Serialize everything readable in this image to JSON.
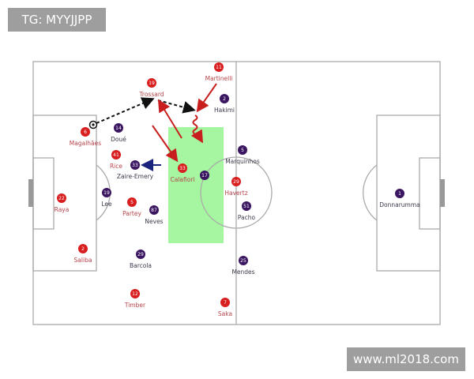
{
  "watermarks": {
    "top_left": "TG: MYYJJPP",
    "bottom_right": "www.ml2018.com"
  },
  "colors": {
    "team_red": "#d81e1e",
    "team_blue": "#3a1560",
    "red_label": "#b5434a",
    "blue_label": "#3a3a4a",
    "highlight_zone": "#a6f5a0",
    "pass_arrow": "#111111",
    "run_arrow": "#b81e1e",
    "blue_arrow": "#1a237e"
  },
  "players": [
    {
      "team": "red",
      "number": "11",
      "name": "Martinelli"
    },
    {
      "team": "red",
      "number": "19",
      "name": "Trossard"
    },
    {
      "team": "red",
      "number": "6",
      "name": "Magalhães"
    },
    {
      "team": "red",
      "number": "41",
      "name": "Rice"
    },
    {
      "team": "red",
      "number": "33",
      "name": "Calafiori"
    },
    {
      "team": "red",
      "number": "22",
      "name": "Raya"
    },
    {
      "team": "red",
      "number": "5",
      "name": "Partey"
    },
    {
      "team": "red",
      "number": "29",
      "name": "Havertz"
    },
    {
      "team": "red",
      "number": "2",
      "name": "Saliba"
    },
    {
      "team": "red",
      "number": "12",
      "name": "Timber"
    },
    {
      "team": "red",
      "number": "7",
      "name": "Saka"
    },
    {
      "team": "blue",
      "number": "2",
      "name": "Hakimi"
    },
    {
      "team": "blue",
      "number": "14",
      "name": "Doué"
    },
    {
      "team": "blue",
      "number": "33",
      "name": "Zaire-Emery"
    },
    {
      "team": "blue",
      "number": "19",
      "name": "Lee"
    },
    {
      "team": "blue",
      "number": "17",
      "name": ""
    },
    {
      "team": "blue",
      "number": "5",
      "name": "Marquinhos"
    },
    {
      "team": "blue",
      "number": "51",
      "name": "Pacho"
    },
    {
      "team": "blue",
      "number": "87",
      "name": "Neves"
    },
    {
      "team": "blue",
      "number": "29",
      "name": "Barcola"
    },
    {
      "team": "blue",
      "number": "25",
      "name": "Mendes"
    },
    {
      "team": "blue",
      "number": "1",
      "name": "Donnarumma"
    }
  ]
}
